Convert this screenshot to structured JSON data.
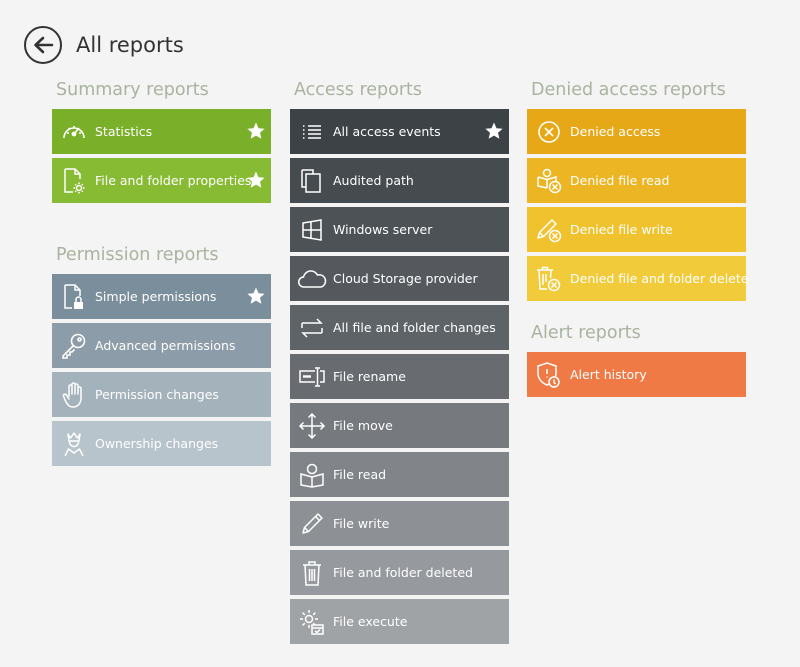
{
  "header": {
    "title": "All reports",
    "back_icon": "back-arrow-icon"
  },
  "colors": {
    "section_title": "#a9b39f",
    "summary": [
      "#7aaf2a",
      "#86bb33"
    ],
    "permission": [
      "#7b8e9b",
      "#8c9ca8",
      "#a4b2bb",
      "#b8c4cb"
    ],
    "access": [
      "#3d4246",
      "#464b50",
      "#4d5257",
      "#55595e",
      "#5e6367",
      "#686c70",
      "#767a7e",
      "#81858a",
      "#8d9195",
      "#969a9e",
      "#a0a3a6"
    ],
    "denied": [
      "#e6a816",
      "#ecb523",
      "#efc22e",
      "#f2cb3a"
    ],
    "alert": "#f07a45"
  },
  "sections": {
    "summary": {
      "title": "Summary reports",
      "items": [
        {
          "label": "Statistics",
          "icon": "speedometer-icon",
          "starred": true
        },
        {
          "label": "File and folder properties",
          "icon": "file-gear-icon",
          "starred": true
        }
      ]
    },
    "permission": {
      "title": "Permission reports",
      "items": [
        {
          "label": "Simple permissions",
          "icon": "file-lock-icon",
          "starred": true
        },
        {
          "label": "Advanced permissions",
          "icon": "key-icon",
          "starred": false
        },
        {
          "label": "Permission changes",
          "icon": "hand-icon",
          "starred": false
        },
        {
          "label": "Ownership changes",
          "icon": "person-crown-icon",
          "starred": false
        }
      ]
    },
    "access": {
      "title": "Access reports",
      "items": [
        {
          "label": "All access events",
          "icon": "list-icon",
          "starred": true
        },
        {
          "label": "Audited path",
          "icon": "copy-icon",
          "starred": false
        },
        {
          "label": "Windows server",
          "icon": "windows-icon",
          "starred": false
        },
        {
          "label": "Cloud Storage provider",
          "icon": "cloud-icon",
          "starred": false
        },
        {
          "label": "All file and folder changes",
          "icon": "swap-arrows-icon",
          "starred": false
        },
        {
          "label": "File rename",
          "icon": "rename-icon",
          "starred": false
        },
        {
          "label": "File move",
          "icon": "move-arrows-icon",
          "starred": false
        },
        {
          "label": "File read",
          "icon": "book-read-icon",
          "starred": false
        },
        {
          "label": "File write",
          "icon": "pencil-icon",
          "starred": false
        },
        {
          "label": "File and folder deleted",
          "icon": "trash-icon",
          "starred": false
        },
        {
          "label": "File execute",
          "icon": "gear-window-icon",
          "starred": false
        }
      ]
    },
    "denied": {
      "title": "Denied access reports",
      "items": [
        {
          "label": "Denied access",
          "icon": "denied-circle-icon",
          "starred": false
        },
        {
          "label": "Denied file read",
          "icon": "denied-read-icon",
          "starred": false
        },
        {
          "label": "Denied file write",
          "icon": "denied-write-icon",
          "starred": false
        },
        {
          "label": "Denied file and folder delete",
          "icon": "denied-delete-icon",
          "starred": false
        }
      ]
    },
    "alert": {
      "title": "Alert reports",
      "items": [
        {
          "label": "Alert history",
          "icon": "shield-alert-icon",
          "starred": false
        }
      ]
    }
  }
}
